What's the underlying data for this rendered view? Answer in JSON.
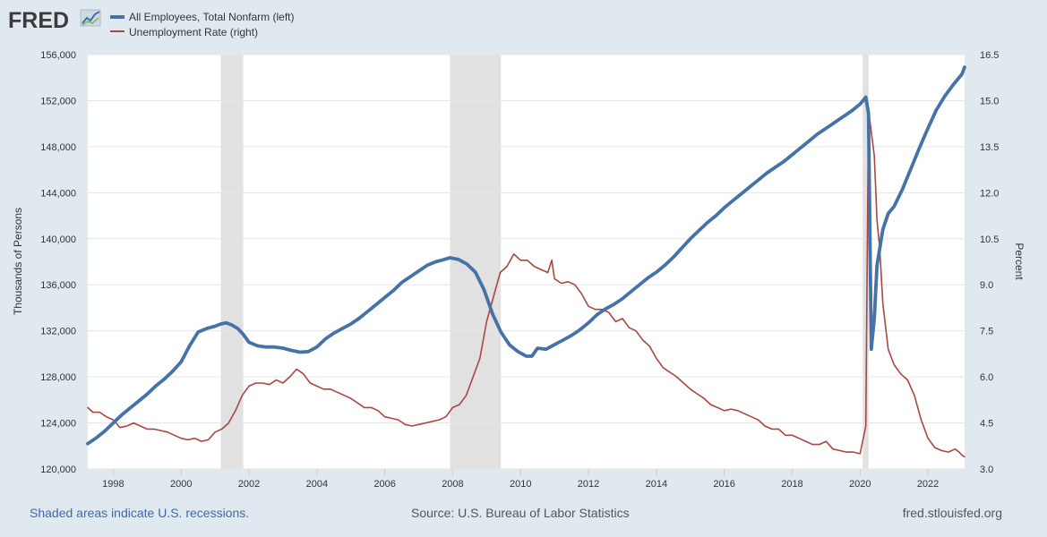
{
  "brand": {
    "logo_text": "FRED"
  },
  "footer": {
    "recession_note": "Shaded areas indicate U.S. recessions.",
    "source": "Source: U.S. Bureau of Labor Statistics",
    "site": "fred.stlouisfed.org"
  },
  "colors": {
    "background": "#e1e9f0",
    "plot_background": "#ffffff",
    "employment": "#4572a7",
    "unemployment": "#aa4643",
    "recession": "#e1e1e1",
    "grid": "#e6e6e6",
    "link": "#3f69a9",
    "footer_gray": "#555555"
  },
  "chart_data": {
    "type": "line",
    "title": "",
    "xlabel": "",
    "xlim": [
      1997.25,
      2023.08
    ],
    "x_ticks": [
      1998,
      2000,
      2002,
      2004,
      2006,
      2008,
      2010,
      2012,
      2014,
      2016,
      2018,
      2020,
      2022
    ],
    "recessions": [
      [
        2001.17,
        2001.83
      ],
      [
        2007.92,
        2009.42
      ],
      [
        2020.08,
        2020.25
      ]
    ],
    "left_axis": {
      "label": "Thousands of Persons",
      "ylim": [
        120000,
        156000
      ],
      "ticks": [
        120000,
        124000,
        128000,
        132000,
        136000,
        140000,
        144000,
        148000,
        152000,
        156000
      ],
      "tick_labels": [
        "120,000",
        "124,000",
        "128,000",
        "132,000",
        "136,000",
        "140,000",
        "144,000",
        "148,000",
        "152,000",
        "156,000"
      ]
    },
    "right_axis": {
      "label": "Percent",
      "ylim": [
        3.0,
        16.5
      ],
      "ticks": [
        3.0,
        4.5,
        6.0,
        7.5,
        9.0,
        10.5,
        12.0,
        13.5,
        15.0,
        16.5
      ],
      "tick_labels": [
        "3.0",
        "4.5",
        "6.0",
        "7.5",
        "9.0",
        "10.5",
        "12.0",
        "13.5",
        "15.0",
        "16.5"
      ]
    },
    "series": [
      {
        "name": "All Employees, Total Nonfarm (left)",
        "axis": "left",
        "points": [
          [
            1997.25,
            122200
          ],
          [
            1997.5,
            122700
          ],
          [
            1997.75,
            123300
          ],
          [
            1998.0,
            124000
          ],
          [
            1998.25,
            124700
          ],
          [
            1998.5,
            125300
          ],
          [
            1998.75,
            125900
          ],
          [
            1999.0,
            126500
          ],
          [
            1999.25,
            127200
          ],
          [
            1999.5,
            127800
          ],
          [
            1999.75,
            128500
          ],
          [
            2000.0,
            129300
          ],
          [
            2000.25,
            130700
          ],
          [
            2000.5,
            131900
          ],
          [
            2000.75,
            132200
          ],
          [
            2001.0,
            132400
          ],
          [
            2001.17,
            132600
          ],
          [
            2001.33,
            132700
          ],
          [
            2001.5,
            132500
          ],
          [
            2001.67,
            132200
          ],
          [
            2001.83,
            131700
          ],
          [
            2002.0,
            131000
          ],
          [
            2002.25,
            130700
          ],
          [
            2002.5,
            130600
          ],
          [
            2002.75,
            130600
          ],
          [
            2003.0,
            130500
          ],
          [
            2003.25,
            130300
          ],
          [
            2003.5,
            130150
          ],
          [
            2003.75,
            130200
          ],
          [
            2004.0,
            130600
          ],
          [
            2004.25,
            131300
          ],
          [
            2004.5,
            131800
          ],
          [
            2004.75,
            132200
          ],
          [
            2005.0,
            132600
          ],
          [
            2005.25,
            133100
          ],
          [
            2005.5,
            133700
          ],
          [
            2005.75,
            134300
          ],
          [
            2006.0,
            134900
          ],
          [
            2006.25,
            135500
          ],
          [
            2006.5,
            136200
          ],
          [
            2006.75,
            136700
          ],
          [
            2007.0,
            137200
          ],
          [
            2007.25,
            137700
          ],
          [
            2007.5,
            138000
          ],
          [
            2007.75,
            138200
          ],
          [
            2007.92,
            138350
          ],
          [
            2008.17,
            138200
          ],
          [
            2008.42,
            137800
          ],
          [
            2008.67,
            137100
          ],
          [
            2008.92,
            135600
          ],
          [
            2009.17,
            133500
          ],
          [
            2009.42,
            131900
          ],
          [
            2009.67,
            130800
          ],
          [
            2009.92,
            130200
          ],
          [
            2010.17,
            129800
          ],
          [
            2010.33,
            129800
          ],
          [
            2010.5,
            130500
          ],
          [
            2010.75,
            130400
          ],
          [
            2011.0,
            130800
          ],
          [
            2011.25,
            131200
          ],
          [
            2011.5,
            131600
          ],
          [
            2011.75,
            132100
          ],
          [
            2012.0,
            132700
          ],
          [
            2012.25,
            133400
          ],
          [
            2012.5,
            133900
          ],
          [
            2012.75,
            134300
          ],
          [
            2013.0,
            134800
          ],
          [
            2013.25,
            135400
          ],
          [
            2013.5,
            136000
          ],
          [
            2013.75,
            136600
          ],
          [
            2014.0,
            137100
          ],
          [
            2014.25,
            137700
          ],
          [
            2014.5,
            138400
          ],
          [
            2014.75,
            139200
          ],
          [
            2015.0,
            140000
          ],
          [
            2015.25,
            140700
          ],
          [
            2015.5,
            141400
          ],
          [
            2015.75,
            142000
          ],
          [
            2016.0,
            142700
          ],
          [
            2016.25,
            143300
          ],
          [
            2016.5,
            143900
          ],
          [
            2016.75,
            144500
          ],
          [
            2017.0,
            145100
          ],
          [
            2017.25,
            145700
          ],
          [
            2017.5,
            146200
          ],
          [
            2017.75,
            146700
          ],
          [
            2018.0,
            147300
          ],
          [
            2018.25,
            147900
          ],
          [
            2018.5,
            148500
          ],
          [
            2018.75,
            149100
          ],
          [
            2019.0,
            149600
          ],
          [
            2019.25,
            150100
          ],
          [
            2019.5,
            150600
          ],
          [
            2019.75,
            151100
          ],
          [
            2020.0,
            151700
          ],
          [
            2020.17,
            152300
          ],
          [
            2020.25,
            150900
          ],
          [
            2020.33,
            130400
          ],
          [
            2020.42,
            133100
          ],
          [
            2020.5,
            137700
          ],
          [
            2020.67,
            140800
          ],
          [
            2020.83,
            142200
          ],
          [
            2021.0,
            142800
          ],
          [
            2021.25,
            144300
          ],
          [
            2021.5,
            146100
          ],
          [
            2021.75,
            147900
          ],
          [
            2022.0,
            149600
          ],
          [
            2022.25,
            151200
          ],
          [
            2022.5,
            152400
          ],
          [
            2022.75,
            153400
          ],
          [
            2023.0,
            154300
          ],
          [
            2023.08,
            154900
          ]
        ]
      },
      {
        "name": "Unemployment Rate (right)",
        "axis": "right",
        "points": [
          [
            1997.25,
            5.0
          ],
          [
            1997.4,
            4.85
          ],
          [
            1997.6,
            4.85
          ],
          [
            1997.8,
            4.7
          ],
          [
            1998.0,
            4.6
          ],
          [
            1998.2,
            4.35
          ],
          [
            1998.4,
            4.4
          ],
          [
            1998.6,
            4.5
          ],
          [
            1998.8,
            4.4
          ],
          [
            1999.0,
            4.3
          ],
          [
            1999.2,
            4.3
          ],
          [
            1999.4,
            4.25
          ],
          [
            1999.6,
            4.2
          ],
          [
            1999.8,
            4.1
          ],
          [
            2000.0,
            4.0
          ],
          [
            2000.2,
            3.95
          ],
          [
            2000.4,
            4.0
          ],
          [
            2000.6,
            3.9
          ],
          [
            2000.8,
            3.95
          ],
          [
            2001.0,
            4.2
          ],
          [
            2001.2,
            4.3
          ],
          [
            2001.4,
            4.5
          ],
          [
            2001.6,
            4.9
          ],
          [
            2001.8,
            5.4
          ],
          [
            2002.0,
            5.7
          ],
          [
            2002.2,
            5.8
          ],
          [
            2002.4,
            5.8
          ],
          [
            2002.6,
            5.75
          ],
          [
            2002.8,
            5.9
          ],
          [
            2003.0,
            5.8
          ],
          [
            2003.2,
            6.0
          ],
          [
            2003.4,
            6.25
          ],
          [
            2003.6,
            6.1
          ],
          [
            2003.8,
            5.8
          ],
          [
            2004.0,
            5.7
          ],
          [
            2004.2,
            5.6
          ],
          [
            2004.4,
            5.6
          ],
          [
            2004.6,
            5.5
          ],
          [
            2004.8,
            5.4
          ],
          [
            2005.0,
            5.3
          ],
          [
            2005.2,
            5.15
          ],
          [
            2005.4,
            5.0
          ],
          [
            2005.6,
            5.0
          ],
          [
            2005.8,
            4.9
          ],
          [
            2006.0,
            4.7
          ],
          [
            2006.2,
            4.65
          ],
          [
            2006.4,
            4.6
          ],
          [
            2006.6,
            4.45
          ],
          [
            2006.8,
            4.4
          ],
          [
            2007.0,
            4.45
          ],
          [
            2007.2,
            4.5
          ],
          [
            2007.4,
            4.55
          ],
          [
            2007.6,
            4.6
          ],
          [
            2007.8,
            4.7
          ],
          [
            2008.0,
            5.0
          ],
          [
            2008.2,
            5.1
          ],
          [
            2008.4,
            5.4
          ],
          [
            2008.6,
            6.0
          ],
          [
            2008.8,
            6.6
          ],
          [
            2009.0,
            7.8
          ],
          [
            2009.2,
            8.6
          ],
          [
            2009.4,
            9.4
          ],
          [
            2009.6,
            9.6
          ],
          [
            2009.8,
            10.0
          ],
          [
            2010.0,
            9.8
          ],
          [
            2010.2,
            9.8
          ],
          [
            2010.4,
            9.6
          ],
          [
            2010.6,
            9.5
          ],
          [
            2010.8,
            9.4
          ],
          [
            2010.92,
            9.8
          ],
          [
            2011.0,
            9.2
          ],
          [
            2011.2,
            9.05
          ],
          [
            2011.4,
            9.1
          ],
          [
            2011.6,
            9.0
          ],
          [
            2011.8,
            8.7
          ],
          [
            2012.0,
            8.3
          ],
          [
            2012.2,
            8.2
          ],
          [
            2012.4,
            8.2
          ],
          [
            2012.6,
            8.1
          ],
          [
            2012.8,
            7.8
          ],
          [
            2013.0,
            7.9
          ],
          [
            2013.2,
            7.6
          ],
          [
            2013.4,
            7.5
          ],
          [
            2013.6,
            7.2
          ],
          [
            2013.8,
            7.0
          ],
          [
            2014.0,
            6.6
          ],
          [
            2014.2,
            6.3
          ],
          [
            2014.4,
            6.15
          ],
          [
            2014.6,
            6.0
          ],
          [
            2014.8,
            5.8
          ],
          [
            2015.0,
            5.6
          ],
          [
            2015.2,
            5.45
          ],
          [
            2015.4,
            5.3
          ],
          [
            2015.6,
            5.1
          ],
          [
            2015.8,
            5.0
          ],
          [
            2016.0,
            4.9
          ],
          [
            2016.2,
            4.95
          ],
          [
            2016.4,
            4.9
          ],
          [
            2016.6,
            4.8
          ],
          [
            2016.8,
            4.7
          ],
          [
            2017.0,
            4.6
          ],
          [
            2017.2,
            4.4
          ],
          [
            2017.4,
            4.3
          ],
          [
            2017.6,
            4.3
          ],
          [
            2017.8,
            4.1
          ],
          [
            2018.0,
            4.1
          ],
          [
            2018.2,
            4.0
          ],
          [
            2018.4,
            3.9
          ],
          [
            2018.6,
            3.8
          ],
          [
            2018.8,
            3.8
          ],
          [
            2019.0,
            3.9
          ],
          [
            2019.2,
            3.65
          ],
          [
            2019.4,
            3.6
          ],
          [
            2019.6,
            3.55
          ],
          [
            2019.8,
            3.55
          ],
          [
            2020.0,
            3.5
          ],
          [
            2020.17,
            4.4
          ],
          [
            2020.25,
            14.7
          ],
          [
            2020.42,
            13.2
          ],
          [
            2020.5,
            11.1
          ],
          [
            2020.58,
            10.2
          ],
          [
            2020.67,
            8.4
          ],
          [
            2020.83,
            6.9
          ],
          [
            2021.0,
            6.4
          ],
          [
            2021.2,
            6.1
          ],
          [
            2021.4,
            5.9
          ],
          [
            2021.6,
            5.4
          ],
          [
            2021.8,
            4.6
          ],
          [
            2022.0,
            4.0
          ],
          [
            2022.2,
            3.7
          ],
          [
            2022.4,
            3.6
          ],
          [
            2022.6,
            3.55
          ],
          [
            2022.8,
            3.65
          ],
          [
            2022.92,
            3.55
          ],
          [
            2023.0,
            3.45
          ],
          [
            2023.08,
            3.4
          ]
        ]
      }
    ]
  }
}
